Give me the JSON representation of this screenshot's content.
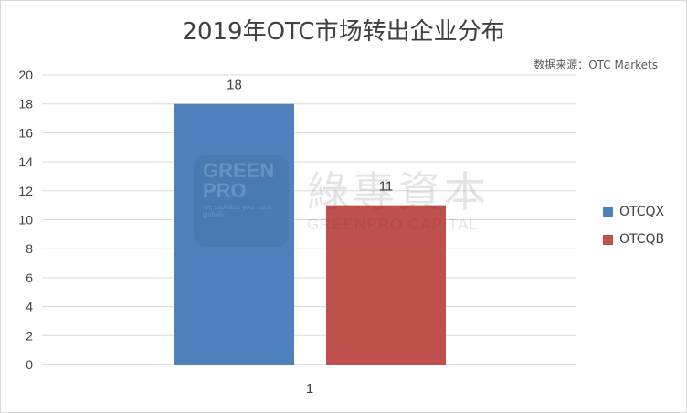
{
  "chart_data": {
    "type": "bar",
    "title": "2019年OTC市场转出企业分布",
    "source": "数据来源：OTC Markets",
    "categories": [
      "1"
    ],
    "series": [
      {
        "name": "OTCQX",
        "values": [
          18
        ],
        "color": "#4f81bd"
      },
      {
        "name": "OTCQB",
        "values": [
          11
        ],
        "color": "#c0504d"
      }
    ],
    "xlabel": "",
    "ylabel": "",
    "ylim": [
      0,
      20
    ],
    "yticks": [
      0,
      2,
      4,
      6,
      8,
      10,
      12,
      14,
      16,
      18,
      20
    ],
    "grid": true,
    "legend": "right"
  },
  "watermark": {
    "badge_line1": "GREEN",
    "badge_line2": "PRO",
    "badge_tagline": "We capitalize your value globally",
    "chinese": "綠專資本",
    "english": "GREENPRO CAPITAL"
  }
}
